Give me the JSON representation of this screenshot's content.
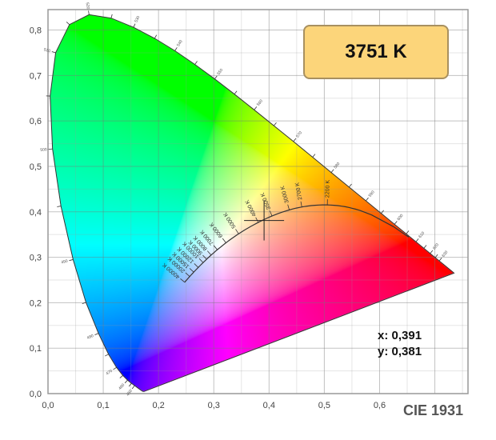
{
  "chart_data": {
    "type": "line",
    "title": "CIE 1931",
    "xlabel": "",
    "ylabel": "",
    "xlim": [
      0.0,
      0.76
    ],
    "ylim": [
      0.0,
      0.845
    ],
    "grid": true,
    "x_ticks": [
      "0,0",
      "0,1",
      "0,2",
      "0,3",
      "0,4",
      "0,5",
      "0,6"
    ],
    "x_tick_values": [
      0,
      0.1,
      0.2,
      0.3,
      0.4,
      0.5,
      0.6
    ],
    "y_ticks": [
      "0,0",
      "0,1",
      "0,2",
      "0,3",
      "0,4",
      "0,5",
      "0,6",
      "0,7",
      "0,8"
    ],
    "y_tick_values": [
      0,
      0.1,
      0.2,
      0.3,
      0.4,
      0.5,
      0.6,
      0.7,
      0.8
    ],
    "spectral_locus": [
      [
        380,
        0.1741,
        0.005
      ],
      [
        400,
        0.1733,
        0.0048
      ],
      [
        420,
        0.1714,
        0.0051
      ],
      [
        430,
        0.1689,
        0.0069
      ],
      [
        440,
        0.1644,
        0.0109
      ],
      [
        450,
        0.1566,
        0.0177
      ],
      [
        455,
        0.151,
        0.0227
      ],
      [
        460,
        0.144,
        0.0297
      ],
      [
        465,
        0.1355,
        0.0399
      ],
      [
        470,
        0.1241,
        0.0578
      ],
      [
        475,
        0.1096,
        0.0868
      ],
      [
        480,
        0.0913,
        0.1327
      ],
      [
        485,
        0.0687,
        0.2007
      ],
      [
        490,
        0.0454,
        0.295
      ],
      [
        495,
        0.0235,
        0.4127
      ],
      [
        500,
        0.0082,
        0.5384
      ],
      [
        505,
        0.0039,
        0.6548
      ],
      [
        510,
        0.0139,
        0.7502
      ],
      [
        515,
        0.0389,
        0.812
      ],
      [
        520,
        0.0743,
        0.8338
      ],
      [
        525,
        0.1142,
        0.8262
      ],
      [
        530,
        0.1547,
        0.8059
      ],
      [
        535,
        0.1929,
        0.7816
      ],
      [
        540,
        0.2296,
        0.7543
      ],
      [
        545,
        0.2658,
        0.7243
      ],
      [
        550,
        0.3016,
        0.6923
      ],
      [
        555,
        0.3373,
        0.6589
      ],
      [
        560,
        0.3731,
        0.6245
      ],
      [
        565,
        0.4087,
        0.5896
      ],
      [
        570,
        0.4441,
        0.5547
      ],
      [
        575,
        0.4788,
        0.5202
      ],
      [
        580,
        0.5125,
        0.4866
      ],
      [
        585,
        0.5448,
        0.4544
      ],
      [
        590,
        0.5752,
        0.4242
      ],
      [
        595,
        0.6029,
        0.3965
      ],
      [
        600,
        0.627,
        0.3725
      ],
      [
        605,
        0.6482,
        0.3514
      ],
      [
        610,
        0.6658,
        0.334
      ],
      [
        615,
        0.6801,
        0.3197
      ],
      [
        620,
        0.6915,
        0.3083
      ],
      [
        625,
        0.7006,
        0.2993
      ],
      [
        630,
        0.7079,
        0.292
      ],
      [
        640,
        0.719,
        0.2809
      ],
      [
        650,
        0.726,
        0.274
      ],
      [
        700,
        0.7347,
        0.2653
      ]
    ],
    "wavelength_labels": [
      450,
      460,
      470,
      480,
      490,
      500,
      510,
      520,
      530,
      540,
      550,
      560,
      570,
      580,
      590,
      600,
      610,
      620,
      630
    ],
    "planckian_ticks": [
      {
        "kelvin": 40000,
        "label": "40000 K"
      },
      {
        "kelvin": 20000,
        "label": "20000 K"
      },
      {
        "kelvin": 15000,
        "label": "15000 K"
      },
      {
        "kelvin": 12000,
        "label": "12000 K"
      },
      {
        "kelvin": 10000,
        "label": "10000 K"
      },
      {
        "kelvin": 9000,
        "label": "9000 K"
      },
      {
        "kelvin": 8000,
        "label": "8000 K"
      },
      {
        "kelvin": 7000,
        "label": "7000 K"
      },
      {
        "kelvin": 6000,
        "label": "6000 K"
      },
      {
        "kelvin": 5000,
        "label": "5000 K"
      },
      {
        "kelvin": 4000,
        "label": "4000 K"
      },
      {
        "kelvin": 3500,
        "label": "3500 K"
      },
      {
        "kelvin": 3000,
        "label": "3000 K"
      },
      {
        "kelvin": 2700,
        "label": "2700 K"
      },
      {
        "kelvin": 2200,
        "label": "2200 K"
      }
    ],
    "marker": {
      "x": 0.391,
      "y": 0.381
    }
  },
  "readout": {
    "cct": "3751 K",
    "x_text": "x: 0,391",
    "y_text": "y: 0,381"
  },
  "colors": {
    "cct_box": "#fcd57a",
    "cct_border": "#a89060",
    "title": "#555555"
  }
}
